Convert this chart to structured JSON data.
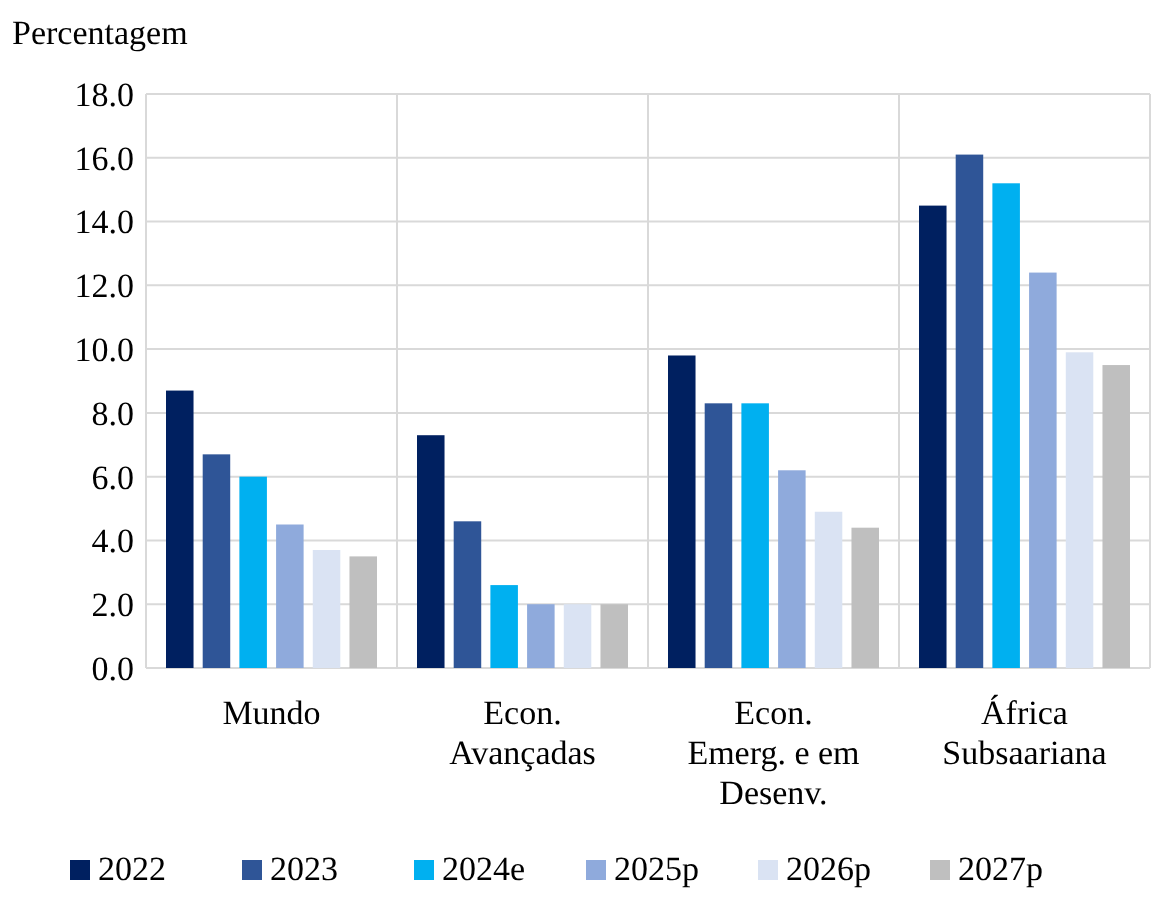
{
  "chart_data": {
    "type": "bar",
    "ylabel": "Percentagem",
    "categories": [
      "Mundo",
      "Econ.\nAvançadas",
      "Econ.\nEmerg. e em\nDesenv.",
      "África\nSubsaariana"
    ],
    "series": [
      {
        "name": "2022",
        "color": "#002060",
        "values": [
          8.7,
          7.3,
          9.8,
          14.5
        ]
      },
      {
        "name": "2023",
        "color": "#2f5597",
        "values": [
          6.7,
          4.6,
          8.3,
          16.1
        ]
      },
      {
        "name": "2024e",
        "color": "#00b0f0",
        "values": [
          6.0,
          2.6,
          8.3,
          15.2
        ]
      },
      {
        "name": "2025p",
        "color": "#8faadc",
        "values": [
          4.5,
          2.0,
          6.2,
          12.4
        ]
      },
      {
        "name": "2026p",
        "color": "#dae3f3",
        "values": [
          3.7,
          2.0,
          4.9,
          9.9
        ]
      },
      {
        "name": "2027p",
        "color": "#bfbfbf",
        "values": [
          3.5,
          2.0,
          4.4,
          9.5
        ]
      }
    ],
    "ylim": [
      0,
      18
    ],
    "yticks": [
      {
        "value": 0,
        "label": "0.0"
      },
      {
        "value": 2,
        "label": "2.0"
      },
      {
        "value": 4,
        "label": "4.0"
      },
      {
        "value": 6,
        "label": "6.0"
      },
      {
        "value": 8,
        "label": "8.0"
      },
      {
        "value": 10,
        "label": "10.0"
      },
      {
        "value": 12,
        "label": "12.0"
      },
      {
        "value": 14,
        "label": "14.0"
      },
      {
        "value": 16,
        "label": "16.0"
      },
      {
        "value": 18,
        "label": "18.0"
      }
    ],
    "grid": true,
    "legend": "bottom"
  }
}
